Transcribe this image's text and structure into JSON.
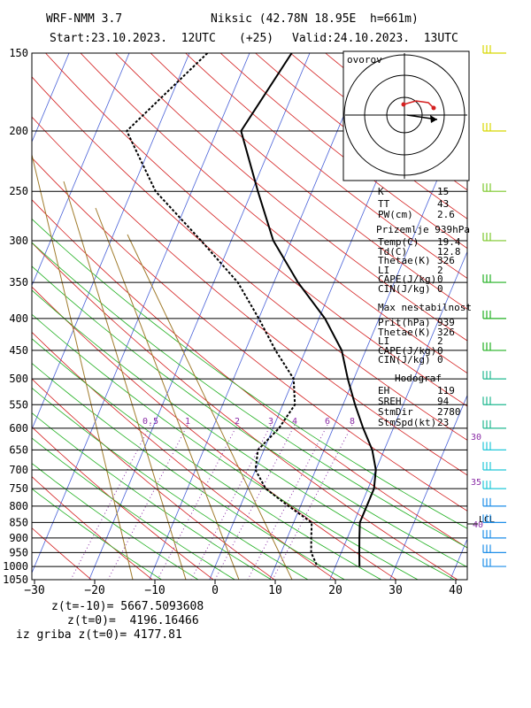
{
  "header": {
    "model": "WRF-NMM 3.7",
    "station": "Niksic (42.78N 18.95E  h=661m)",
    "start": "Start:23.10.2023.  12UTC",
    "lead": "(+25)",
    "valid": "Valid:24.10.2023.  13UTC"
  },
  "hodograph": {
    "title": "ovorov"
  },
  "indices": {
    "k_label": "K",
    "k": "15",
    "tt_label": "TT",
    "tt": "43",
    "pw_label": "PW(cm)",
    "pw": "2.6"
  },
  "surface": {
    "title": "Prizemlje 939hPa",
    "rows": [
      {
        "label": "Temp(C)",
        "value": "19.4"
      },
      {
        "label": "Td(C)",
        "value": "12.8"
      },
      {
        "label": "Thetae(K)",
        "value": "326"
      },
      {
        "label": "LI",
        "value": "2"
      },
      {
        "label": "CAPE(J/kg)",
        "value": "0"
      },
      {
        "label": "CIN(J/kg)",
        "value": "0"
      }
    ]
  },
  "max_unstable": {
    "title": "Max nestabilnost",
    "rows": [
      {
        "label": "Prit(hPa)",
        "value": "939"
      },
      {
        "label": "Thetae(K)",
        "value": "326"
      },
      {
        "label": "LI",
        "value": "2"
      },
      {
        "label": "CAPE(J/kg)",
        "value": "0"
      },
      {
        "label": "CIN(J/kg)",
        "value": "0"
      }
    ]
  },
  "hodograf": {
    "title": "Hodograf",
    "rows": [
      {
        "label": "EH",
        "value": "119"
      },
      {
        "label": "SREH",
        "value": "94"
      },
      {
        "label": "StmDir",
        "value": "2780"
      },
      {
        "label": "StmSpd(kt)",
        "value": "23"
      }
    ]
  },
  "footer": {
    "line1": "z(t=-10)= 5667.5093608",
    "line2": "z(t=0)=  4196.16466",
    "line3": "iz griba z(t=0)= 4177.81"
  },
  "chart_data": {
    "type": "line",
    "pressure_levels": [
      150,
      200,
      250,
      300,
      350,
      400,
      450,
      500,
      550,
      600,
      650,
      700,
      750,
      800,
      850,
      900,
      950,
      1000,
      1050
    ],
    "temperature_ticks": [
      -30,
      -20,
      -10,
      0,
      10,
      20,
      30,
      40
    ],
    "xlim": [
      -30,
      42
    ],
    "ylim": [
      1050,
      150
    ],
    "mixing_ratio_labels": [
      "0.5",
      "1",
      "2",
      "3",
      "4",
      "6",
      "8"
    ],
    "series": [
      {
        "name": "",
        "style": "solid",
        "color": "#000000",
        "points": [
          [
            -23,
            150
          ],
          [
            -26,
            200
          ],
          [
            -19,
            250
          ],
          [
            -13,
            300
          ],
          [
            -6,
            350
          ],
          [
            1,
            400
          ],
          [
            6,
            450
          ],
          [
            9,
            500
          ],
          [
            12,
            550
          ],
          [
            15,
            600
          ],
          [
            18,
            650
          ],
          [
            20,
            700
          ],
          [
            21,
            750
          ],
          [
            21,
            800
          ],
          [
            21,
            850
          ],
          [
            22,
            900
          ],
          [
            23,
            950
          ],
          [
            24,
            1000
          ]
        ]
      },
      {
        "name": "",
        "style": "dotted",
        "color": "#000000",
        "points": [
          [
            -37,
            150
          ],
          [
            -45,
            200
          ],
          [
            -36,
            250
          ],
          [
            -25,
            300
          ],
          [
            -16,
            350
          ],
          [
            -10,
            400
          ],
          [
            -5,
            450
          ],
          [
            0,
            500
          ],
          [
            2,
            550
          ],
          [
            1,
            600
          ],
          [
            -1,
            650
          ],
          [
            0,
            700
          ],
          [
            3,
            750
          ],
          [
            8,
            800
          ],
          [
            13,
            850
          ],
          [
            14,
            900
          ],
          [
            15,
            950
          ],
          [
            17,
            1000
          ]
        ]
      }
    ],
    "right_labels": [
      "30",
      "35",
      "40",
      "LCL"
    ],
    "wind_barb_levels": [
      150,
      200,
      250,
      300,
      350,
      400,
      450,
      500,
      550,
      600,
      650,
      700,
      750,
      800,
      850,
      900,
      950,
      1000
    ]
  }
}
